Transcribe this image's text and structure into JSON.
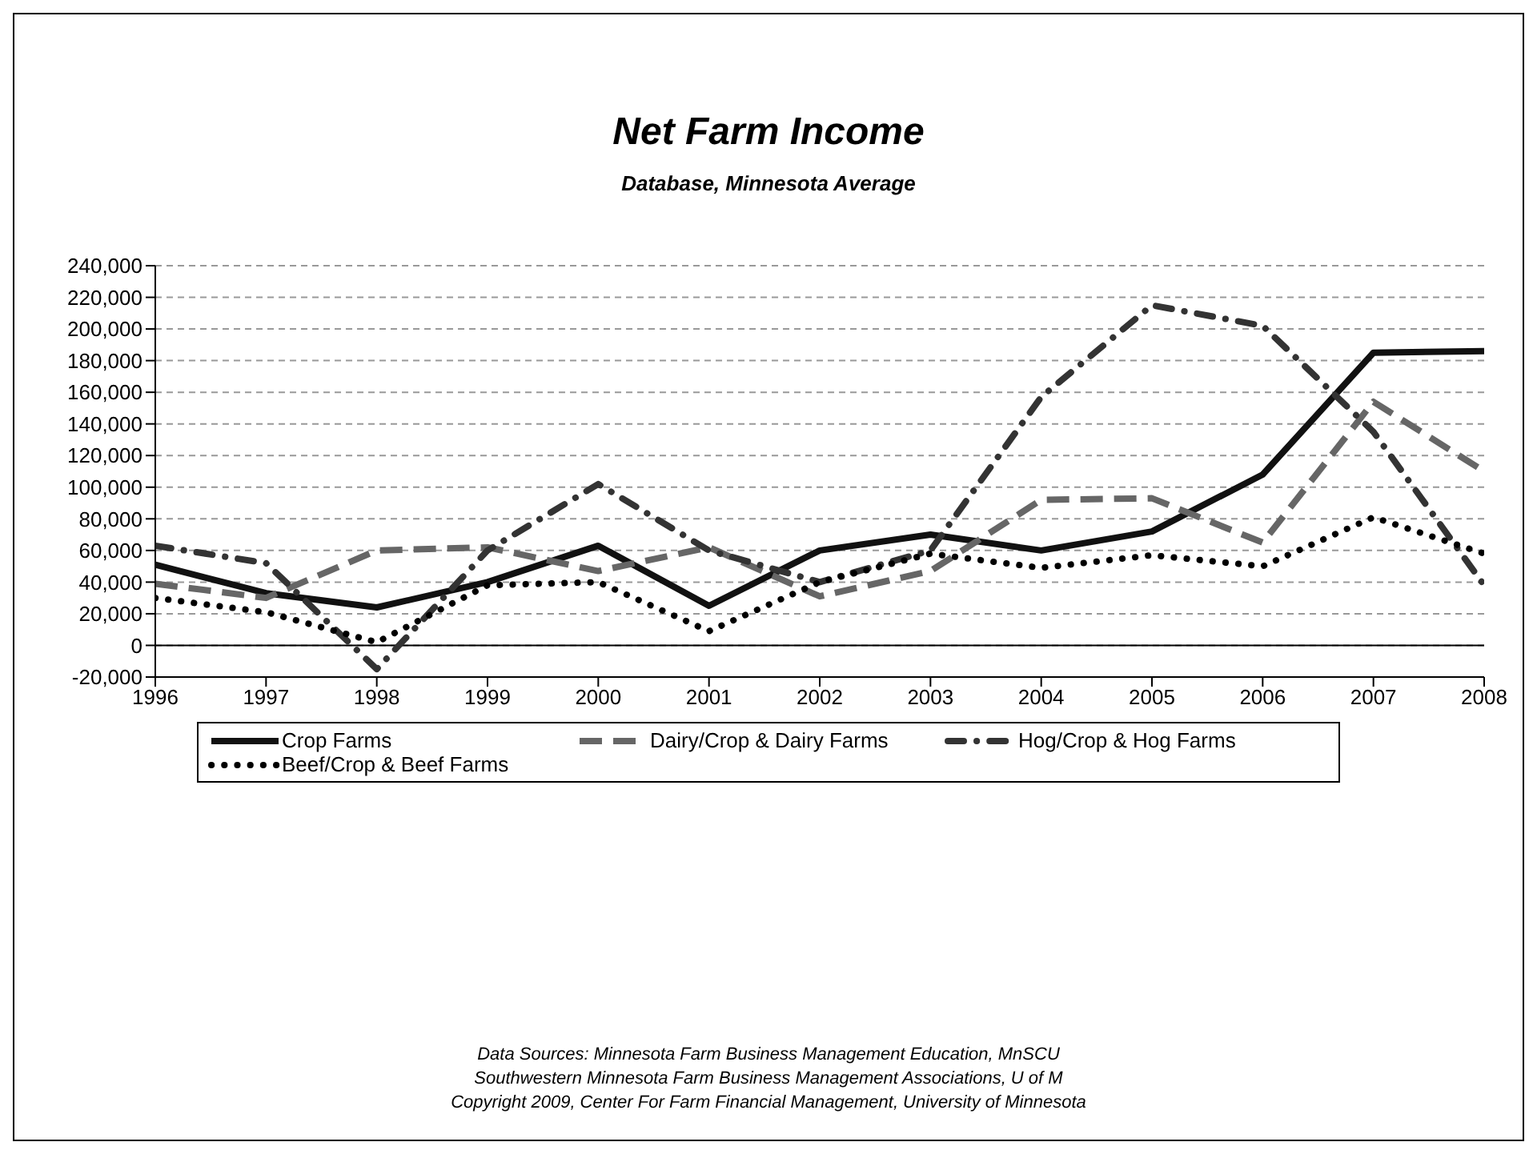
{
  "chart_data": {
    "type": "line",
    "title": "Net Farm Income",
    "subtitle": "Database, Minnesota Average",
    "x": [
      1996,
      1997,
      1998,
      1999,
      2000,
      2001,
      2002,
      2003,
      2004,
      2005,
      2006,
      2007,
      2008
    ],
    "series": [
      {
        "name": "Crop Farms",
        "color": "#111111",
        "line_style": "solid",
        "values": [
          51000,
          33000,
          24000,
          40000,
          63000,
          25000,
          60000,
          70000,
          60000,
          72000,
          108000,
          185000,
          186000
        ]
      },
      {
        "name": "Dairy/Crop & Dairy Farms",
        "color": "#666666",
        "line_style": "dashed",
        "values": [
          39000,
          30000,
          60000,
          62000,
          47000,
          62000,
          31000,
          47000,
          92000,
          93000,
          65000,
          154000,
          110000
        ]
      },
      {
        "name": "Hog/Crop & Hog Farms",
        "color": "#333333",
        "line_style": "dashdot",
        "values": [
          63000,
          52000,
          -15000,
          60000,
          102000,
          60000,
          40000,
          60000,
          157000,
          215000,
          202000,
          135000,
          38000
        ]
      },
      {
        "name": "Beef/Crop & Beef Farms",
        "color": "#000000",
        "line_style": "dotted",
        "values": [
          30000,
          21000,
          2000,
          38000,
          40000,
          9000,
          40000,
          58000,
          49000,
          57000,
          50000,
          81000,
          58000
        ]
      }
    ],
    "xlim": [
      1996,
      2008
    ],
    "xticks": [
      1996,
      1997,
      1998,
      1999,
      2000,
      2001,
      2002,
      2003,
      2004,
      2005,
      2006,
      2007,
      2008
    ],
    "ylim": [
      -20000,
      240000
    ],
    "yticks": [
      {
        "value": -20000,
        "label": "-20,000"
      },
      0,
      {
        "value": 20000,
        "label": "20,000"
      },
      {
        "value": 40000,
        "label": "40,000"
      },
      {
        "value": 60000,
        "label": "60,000"
      },
      {
        "value": 80000,
        "label": "80,000"
      },
      {
        "value": 100000,
        "label": "100,000"
      },
      {
        "value": 120000,
        "label": "120,000"
      },
      {
        "value": 140000,
        "label": "140,000"
      },
      {
        "value": 160000,
        "label": "160,000"
      },
      {
        "value": 180000,
        "label": "180,000"
      },
      {
        "value": 200000,
        "label": "200,000"
      },
      {
        "value": 220000,
        "label": "220,000"
      },
      {
        "value": 240000,
        "label": "240,000"
      }
    ],
    "ref_lines": [
      {
        "axis": "y",
        "value": 0,
        "color": "#000000"
      }
    ],
    "grid": "y",
    "legend": "bottom",
    "marker": "none",
    "annotations": [
      "Data Sources:  Minnesota Farm Business Management Education, MnSCU",
      "Southwestern Minnesota Farm Business Management Associations, U of M",
      "Copyright 2009, Center For Farm Financial Management, University of Minnesota"
    ]
  }
}
